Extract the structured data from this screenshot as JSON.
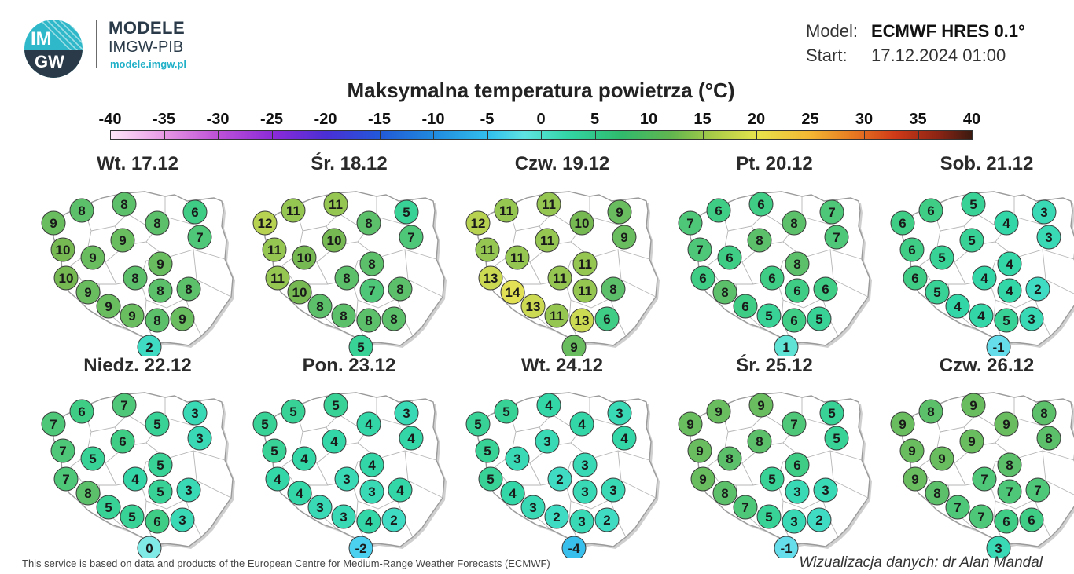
{
  "brand": {
    "logo_text_top": "IM",
    "logo_text_bottom": "GW",
    "title": "MODELE",
    "subtitle": "IMGW-PIB",
    "url": "modele.imgw.pl"
  },
  "meta": {
    "model_label": "Model:",
    "model_value": "ECMWF HRES 0.1°",
    "start_label": "Start:",
    "start_value": "17.12.2024 01:00"
  },
  "title": "Maksymalna temperatura powietrza (°C)",
  "colorbar": {
    "labels": [
      "-40",
      "-35",
      "-30",
      "-25",
      "-20",
      "-15",
      "-10",
      "-5",
      "0",
      "5",
      "10",
      "15",
      "20",
      "25",
      "30",
      "35",
      "40"
    ],
    "min": -40,
    "max": 40
  },
  "days": [
    {
      "label": "Wt. 17.12",
      "values": [
        9,
        8,
        8,
        8,
        6,
        10,
        9,
        9,
        7,
        9,
        10,
        8,
        9,
        8,
        8,
        9,
        9,
        8,
        9,
        2
      ]
    },
    {
      "label": "Śr. 18.12",
      "values": [
        12,
        11,
        11,
        8,
        5,
        11,
        10,
        10,
        7,
        8,
        11,
        8,
        10,
        7,
        8,
        8,
        8,
        8,
        8,
        5
      ]
    },
    {
      "label": "Czw. 19.12",
      "values": [
        12,
        11,
        11,
        10,
        9,
        11,
        11,
        11,
        9,
        11,
        13,
        11,
        14,
        11,
        8,
        13,
        11,
        13,
        6,
        9
      ]
    },
    {
      "label": "Pt. 20.12",
      "values": [
        7,
        6,
        6,
        8,
        7,
        7,
        6,
        8,
        7,
        8,
        6,
        6,
        8,
        6,
        6,
        6,
        5,
        6,
        5,
        1
      ]
    },
    {
      "label": "Sob. 21.12",
      "values": [
        6,
        6,
        5,
        4,
        3,
        6,
        5,
        5,
        3,
        4,
        6,
        4,
        5,
        4,
        2,
        4,
        4,
        5,
        3,
        -1
      ]
    },
    {
      "label": "Niedz. 22.12",
      "values": [
        7,
        6,
        7,
        5,
        3,
        7,
        5,
        6,
        3,
        5,
        7,
        4,
        8,
        5,
        3,
        5,
        5,
        6,
        3,
        0
      ]
    },
    {
      "label": "Pon. 23.12",
      "values": [
        5,
        5,
        5,
        4,
        3,
        5,
        4,
        4,
        4,
        4,
        4,
        3,
        4,
        3,
        4,
        3,
        3,
        4,
        2,
        -2
      ]
    },
    {
      "label": "Wt. 24.12",
      "values": [
        5,
        5,
        4,
        4,
        3,
        5,
        3,
        3,
        4,
        3,
        5,
        2,
        4,
        3,
        3,
        3,
        2,
        3,
        2,
        -4
      ]
    },
    {
      "label": "Śr. 25.12",
      "values": [
        9,
        9,
        9,
        7,
        5,
        9,
        8,
        8,
        5,
        6,
        9,
        5,
        8,
        3,
        3,
        7,
        5,
        3,
        2,
        -1
      ]
    },
    {
      "label": "Czw. 26.12",
      "values": [
        9,
        8,
        9,
        9,
        8,
        9,
        9,
        9,
        8,
        8,
        9,
        7,
        8,
        7,
        7,
        7,
        7,
        6,
        6,
        3
      ]
    }
  ],
  "footer": {
    "source": "This service is based on data and products of the European Centre for Medium-Range Weather Forecasts (ECMWF)",
    "credit": "Wizualizacja danych: dr Alan Mandal"
  }
}
